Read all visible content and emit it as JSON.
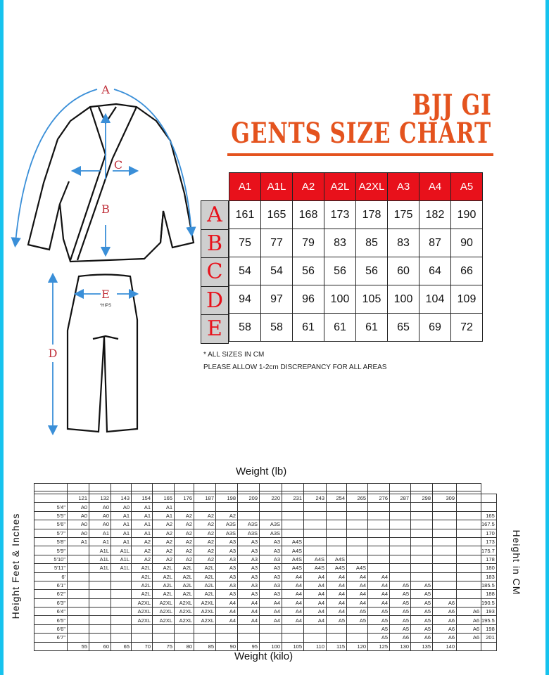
{
  "title": {
    "line1": "BJJ GI",
    "line2": "GENTS SIZE CHART"
  },
  "colors": {
    "title": "#e4531e",
    "header_red": "#e8111b",
    "arrow_blue": "#3a8fd8",
    "border_cyan": "#17c3ee",
    "letter_red": "#c0303a"
  },
  "diagram": {
    "labels": {
      "a": "A",
      "b": "B",
      "c": "C",
      "d": "D",
      "e": "E"
    },
    "hips_note": "*HIPS"
  },
  "size_table": {
    "sizes": [
      "A1",
      "A1L",
      "A2",
      "A2L",
      "A2XL",
      "A3",
      "A4",
      "A5"
    ],
    "rows": [
      {
        "label": "A",
        "values": [
          "161",
          "165",
          "168",
          "173",
          "178",
          "175",
          "182",
          "190"
        ]
      },
      {
        "label": "B",
        "values": [
          "75",
          "77",
          "79",
          "83",
          "85",
          "83",
          "87",
          "90"
        ]
      },
      {
        "label": "C",
        "values": [
          "54",
          "54",
          "56",
          "56",
          "56",
          "60",
          "64",
          "66"
        ]
      },
      {
        "label": "D",
        "values": [
          "94",
          "97",
          "96",
          "100",
          "105",
          "100",
          "104",
          "109"
        ]
      },
      {
        "label": "E",
        "values": [
          "58",
          "58",
          "61",
          "61",
          "61",
          "65",
          "69",
          "72"
        ]
      }
    ],
    "note1": "* ALL SIZES IN CM",
    "note2": "PLEASE ALLOW 1-2cm DISCREPANCY FOR ALL AREAS"
  },
  "weight_chart": {
    "top_label": "Weight (lb)",
    "bottom_label": "Weight (kilo)",
    "left_label": "Height Feet & Inches",
    "right_label": "Height in CM",
    "weights_lb": [
      "121",
      "132",
      "143",
      "154",
      "165",
      "176",
      "187",
      "198",
      "209",
      "220",
      "231",
      "243",
      "254",
      "265",
      "276",
      "287",
      "298",
      "309"
    ],
    "weights_kg": [
      "55",
      "60",
      "65",
      "70",
      "75",
      "80",
      "85",
      "90",
      "95",
      "100",
      "105",
      "110",
      "115",
      "120",
      "125",
      "130",
      "135",
      "140"
    ],
    "rows": [
      {
        "height": "5'4\"",
        "sizes": [
          "A0",
          "A0",
          "A0",
          "A1",
          "A1",
          "",
          "",
          "",
          "",
          "",
          "",
          "",
          "",
          "",
          "",
          "",
          "",
          ""
        ],
        "extra": "",
        "cm": ""
      },
      {
        "height": "5'5\"",
        "sizes": [
          "A0",
          "A0",
          "A1",
          "A1",
          "A1",
          "A2",
          "A2",
          "A2",
          "",
          "",
          "",
          "",
          "",
          "",
          "",
          "",
          "",
          ""
        ],
        "extra": "",
        "cm": "165"
      },
      {
        "height": "5'6\"",
        "sizes": [
          "A0",
          "A0",
          "A1",
          "A1",
          "A2",
          "A2",
          "A2",
          "A3S",
          "A3S",
          "A3S",
          "",
          "",
          "",
          "",
          "",
          "",
          "",
          ""
        ],
        "extra": "",
        "cm": "167.5"
      },
      {
        "height": "5'7\"",
        "sizes": [
          "A0",
          "A1",
          "A1",
          "A1",
          "A2",
          "A2",
          "A2",
          "A3S",
          "A3S",
          "A3S",
          "",
          "",
          "",
          "",
          "",
          "",
          "",
          ""
        ],
        "extra": "",
        "cm": "170"
      },
      {
        "height": "5'8\"",
        "sizes": [
          "A1",
          "A1",
          "A1",
          "A2",
          "A2",
          "A2",
          "A2",
          "A3",
          "A3",
          "A3",
          "A4S",
          "",
          "",
          "",
          "",
          "",
          "",
          ""
        ],
        "extra": "",
        "cm": "173"
      },
      {
        "height": "5'9\"",
        "sizes": [
          "",
          "A1L",
          "A1L",
          "A2",
          "A2",
          "A2",
          "A2",
          "A3",
          "A3",
          "A3",
          "A4S",
          "",
          "",
          "",
          "",
          "",
          "",
          ""
        ],
        "extra": "",
        "cm": "175.7"
      },
      {
        "height": "5'10\"",
        "sizes": [
          "",
          "A1L",
          "A1L",
          "A2",
          "A2",
          "A2",
          "A2",
          "A3",
          "A3",
          "A3",
          "A4S",
          "A4S",
          "A4S",
          "",
          "",
          "",
          "",
          ""
        ],
        "extra": "",
        "cm": "178"
      },
      {
        "height": "5'11\"",
        "sizes": [
          "",
          "A1L",
          "A1L",
          "A2L",
          "A2L",
          "A2L",
          "A2L",
          "A3",
          "A3",
          "A3",
          "A4S",
          "A4S",
          "A4S",
          "A4S",
          "",
          "",
          "",
          ""
        ],
        "extra": "",
        "cm": "180"
      },
      {
        "height": "6'",
        "sizes": [
          "",
          "",
          "",
          "A2L",
          "A2L",
          "A2L",
          "A2L",
          "A3",
          "A3",
          "A3",
          "A4",
          "A4",
          "A4",
          "A4",
          "A4",
          "",
          "",
          ""
        ],
        "extra": "",
        "cm": "183"
      },
      {
        "height": "6'1\"",
        "sizes": [
          "",
          "",
          "",
          "A2L",
          "A2L",
          "A2L",
          "A2L",
          "A3",
          "A3",
          "A3",
          "A4",
          "A4",
          "A4",
          "A4",
          "A4",
          "A5",
          "A5",
          ""
        ],
        "extra": "",
        "cm": "185.5"
      },
      {
        "height": "6'2\"",
        "sizes": [
          "",
          "",
          "",
          "A2L",
          "A2L",
          "A2L",
          "A2L",
          "A3",
          "A3",
          "A3",
          "A4",
          "A4",
          "A4",
          "A4",
          "A4",
          "A5",
          "A5",
          ""
        ],
        "extra": "",
        "cm": "188"
      },
      {
        "height": "6'3\"",
        "sizes": [
          "",
          "",
          "",
          "A2XL",
          "A2XL",
          "A2XL",
          "A2XL",
          "A4",
          "A4",
          "A4",
          "A4",
          "A4",
          "A4",
          "A4",
          "A4",
          "A5",
          "A5",
          "A6"
        ],
        "extra": "",
        "cm": "190.5"
      },
      {
        "height": "6'4\"",
        "sizes": [
          "",
          "",
          "",
          "A2XL",
          "A2XL",
          "A2XL",
          "A2XL",
          "A4",
          "A4",
          "A4",
          "A4",
          "A4",
          "A4",
          "A5",
          "A5",
          "A5",
          "A5",
          "A6"
        ],
        "extra": "A6",
        "cm": "193"
      },
      {
        "height": "6'5\"",
        "sizes": [
          "",
          "",
          "",
          "A2XL",
          "A2XL",
          "A2XL",
          "A2XL",
          "A4",
          "A4",
          "A4",
          "A4",
          "A4",
          "A5",
          "A5",
          "A5",
          "A5",
          "A5",
          "A6"
        ],
        "extra": "A6",
        "cm": "195.5"
      },
      {
        "height": "6'6\"",
        "sizes": [
          "",
          "",
          "",
          "",
          "",
          "",
          "",
          "",
          "",
          "",
          "",
          "",
          "",
          "",
          "A5",
          "A5",
          "A5",
          "A6"
        ],
        "extra": "A6",
        "cm": "198"
      },
      {
        "height": "6'7\"",
        "sizes": [
          "",
          "",
          "",
          "",
          "",
          "",
          "",
          "",
          "",
          "",
          "",
          "",
          "",
          "",
          "A5",
          "A6",
          "A6",
          "A6"
        ],
        "extra": "A6",
        "cm": "201"
      }
    ]
  }
}
